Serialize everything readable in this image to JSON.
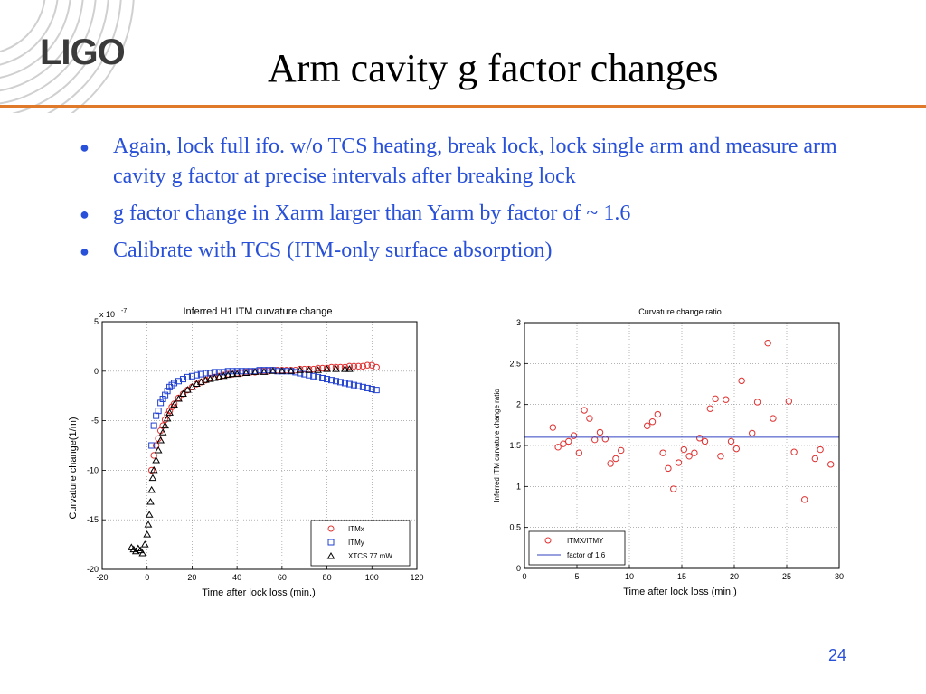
{
  "slide": {
    "logo_text": "LIGO",
    "title": "Arm cavity g factor changes",
    "bullets": [
      "Again, lock full ifo. w/o TCS heating, break lock, lock single arm and measure arm cavity g factor at precise intervals after breaking lock",
      "g factor change in Xarm larger than Yarm by factor of ~ 1.6",
      "Calibrate with TCS (ITM-only surface absorption)"
    ],
    "page_number": "24",
    "accent_color": "#e07a2a",
    "text_color": "#2850d8"
  },
  "chart_data": [
    {
      "type": "scatter",
      "title": "Inferred H1 ITM curvature change",
      "xlabel": "Time after lock loss (min.)",
      "ylabel": "Curvature change(1/m)",
      "y_multiplier": "x 10",
      "y_multiplier_exp": "-7",
      "xlim": [
        -20,
        120
      ],
      "ylim": [
        -20,
        5
      ],
      "xticks": [
        -20,
        0,
        20,
        40,
        60,
        80,
        100,
        120
      ],
      "yticks": [
        5,
        0,
        -5,
        -10,
        -15,
        -20
      ],
      "grid": true,
      "legend_position": "bottom-right",
      "series": [
        {
          "name": "ITMx",
          "marker": "circle",
          "color": "#e03030",
          "x": [
            2,
            3,
            4,
            5,
            6,
            7,
            8,
            9,
            10,
            11,
            12,
            14,
            16,
            18,
            20,
            22,
            24,
            26,
            28,
            30,
            32,
            34,
            36,
            38,
            40,
            42,
            44,
            46,
            48,
            50,
            52,
            54,
            56,
            58,
            60,
            62,
            64,
            66,
            68,
            70,
            72,
            74,
            76,
            78,
            80,
            82,
            84,
            86,
            88,
            90,
            92,
            94,
            96,
            98,
            100,
            102
          ],
          "y": [
            -10,
            -8.5,
            -7.5,
            -6.8,
            -6.0,
            -5.5,
            -4.9,
            -4.4,
            -4.0,
            -3.6,
            -3.3,
            -2.7,
            -2.3,
            -1.9,
            -1.6,
            -1.3,
            -1.1,
            -0.9,
            -0.7,
            -0.6,
            -0.5,
            -0.4,
            -0.3,
            -0.3,
            -0.2,
            -0.2,
            -0.1,
            -0.1,
            -0.1,
            0.0,
            0.0,
            0.0,
            0.1,
            0.1,
            0.1,
            0.1,
            0.1,
            0.1,
            0.2,
            0.2,
            0.2,
            0.2,
            0.3,
            0.3,
            0.3,
            0.4,
            0.4,
            0.4,
            0.4,
            0.5,
            0.5,
            0.5,
            0.5,
            0.6,
            0.6,
            0.4
          ]
        },
        {
          "name": "ITMy",
          "marker": "square",
          "color": "#2040d0",
          "x": [
            2,
            3,
            4,
            5,
            6,
            7,
            8,
            9,
            10,
            11,
            12,
            14,
            16,
            18,
            20,
            22,
            24,
            26,
            28,
            30,
            32,
            34,
            36,
            38,
            40,
            42,
            44,
            46,
            48,
            50,
            52,
            54,
            56,
            58,
            60,
            62,
            64,
            66,
            68,
            70,
            72,
            74,
            76,
            78,
            80,
            82,
            84,
            86,
            88,
            90,
            92,
            94,
            96,
            98,
            100,
            102
          ],
          "y": [
            -7.5,
            -5.5,
            -4.5,
            -4.0,
            -3.2,
            -2.8,
            -2.4,
            -2.0,
            -1.6,
            -1.4,
            -1.2,
            -1.0,
            -0.8,
            -0.6,
            -0.5,
            -0.4,
            -0.3,
            -0.2,
            -0.2,
            -0.1,
            -0.1,
            -0.1,
            0.0,
            0.0,
            0.0,
            0.0,
            0.0,
            0.0,
            0.0,
            0.1,
            0.1,
            0.1,
            0.1,
            0.0,
            0.0,
            0.0,
            0.0,
            -0.1,
            -0.2,
            -0.3,
            -0.4,
            -0.5,
            -0.6,
            -0.7,
            -0.8,
            -0.9,
            -1.0,
            -1.1,
            -1.2,
            -1.3,
            -1.4,
            -1.5,
            -1.6,
            -1.7,
            -1.8,
            -1.9
          ]
        },
        {
          "name": "XTCS 77 mW",
          "marker": "triangle",
          "color": "#000000",
          "x": [
            -7,
            -6,
            -5,
            -4,
            -3,
            -2,
            -1,
            0,
            0.5,
            1,
            1.5,
            2,
            2.5,
            3,
            4,
            5,
            6,
            7,
            8,
            9,
            10,
            12,
            14,
            16,
            18,
            20,
            22,
            24,
            26,
            28,
            30,
            32,
            34,
            36,
            38,
            40,
            44,
            48,
            52,
            56,
            60,
            64,
            68,
            72,
            76,
            80,
            84,
            88,
            90
          ],
          "y": [
            -17.8,
            -18.0,
            -18.2,
            -17.9,
            -18.1,
            -18.4,
            -17.5,
            -16.5,
            -15.5,
            -14.5,
            -13.2,
            -12.0,
            -10.8,
            -10.0,
            -9.0,
            -8.0,
            -7.0,
            -6.2,
            -5.5,
            -4.8,
            -4.2,
            -3.4,
            -2.8,
            -2.3,
            -1.9,
            -1.6,
            -1.3,
            -1.1,
            -0.9,
            -0.8,
            -0.7,
            -0.6,
            -0.5,
            -0.4,
            -0.3,
            -0.3,
            -0.2,
            -0.1,
            -0.1,
            0.0,
            0.0,
            0.0,
            0.1,
            0.1,
            0.1,
            0.2,
            0.2,
            0.2,
            0.2
          ]
        }
      ]
    },
    {
      "type": "scatter",
      "title": "Curvature change ratio",
      "xlabel": "Time after lock loss (min.)",
      "ylabel": "Inferred ITM curvature change ratio",
      "xlim": [
        0,
        30
      ],
      "ylim": [
        0,
        3
      ],
      "xticks": [
        0,
        5,
        10,
        15,
        20,
        25,
        30
      ],
      "yticks": [
        3,
        2.5,
        2,
        1.5,
        1,
        0.5,
        0
      ],
      "grid": true,
      "legend_position": "bottom-left",
      "series": [
        {
          "name": "ITMX/ITMY",
          "marker": "circle",
          "color": "#e03030",
          "x": [
            2.7,
            3.2,
            3.7,
            4.2,
            4.7,
            5.2,
            5.7,
            6.2,
            6.7,
            7.2,
            7.7,
            8.2,
            8.7,
            9.2,
            11.7,
            12.2,
            12.7,
            13.2,
            13.7,
            14.2,
            14.7,
            15.2,
            15.7,
            16.2,
            16.7,
            17.2,
            17.7,
            18.2,
            18.7,
            19.2,
            19.7,
            20.2,
            20.7,
            21.7,
            22.2,
            23.2,
            23.7,
            25.2,
            25.7,
            26.7,
            27.7,
            28.2,
            29.2
          ],
          "y": [
            1.72,
            1.48,
            1.52,
            1.55,
            1.62,
            1.41,
            1.93,
            1.83,
            1.57,
            1.66,
            1.58,
            1.28,
            1.34,
            1.44,
            1.74,
            1.79,
            1.88,
            1.41,
            1.22,
            0.97,
            1.29,
            1.45,
            1.37,
            1.41,
            1.59,
            1.55,
            1.95,
            2.07,
            1.37,
            2.06,
            1.55,
            1.46,
            2.29,
            1.65,
            2.03,
            2.75,
            1.83,
            2.04,
            1.42,
            0.84,
            1.34,
            1.45,
            1.27
          ]
        },
        {
          "name": "factor of 1.6",
          "marker": "line",
          "color": "#3040c0",
          "y_const": 1.6
        }
      ]
    }
  ]
}
